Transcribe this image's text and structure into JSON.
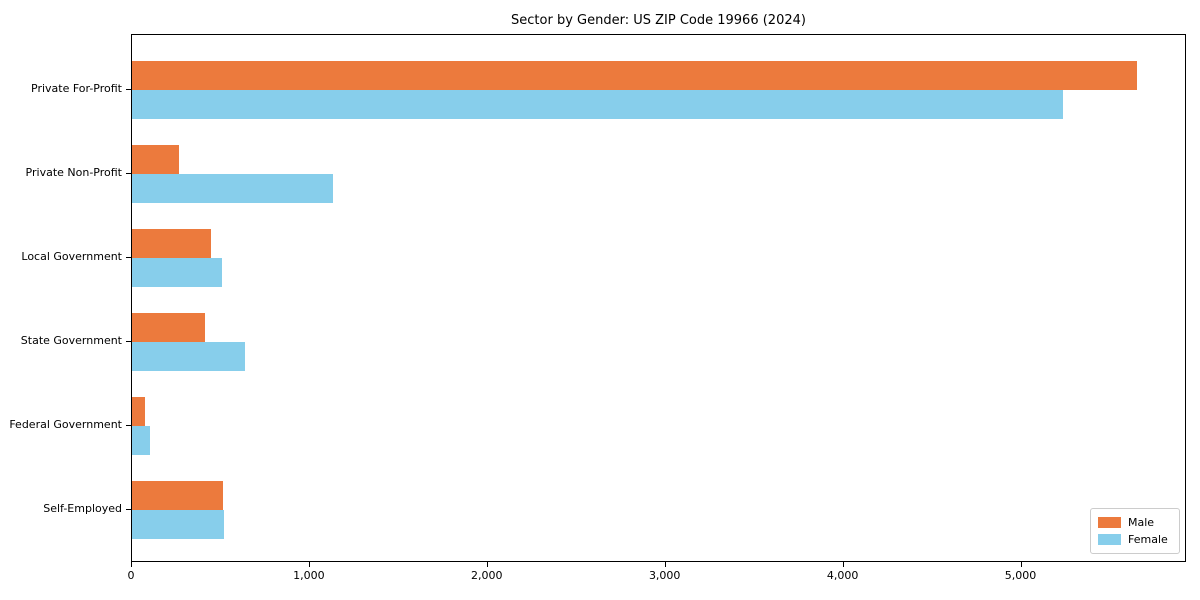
{
  "title": "Sector by Gender: US ZIP Code 19966 (2024)",
  "chart_data": {
    "type": "bar",
    "orientation": "horizontal",
    "title": "Sector by Gender: US ZIP Code 19966 (2024)",
    "xlabel": "",
    "ylabel": "",
    "categories": [
      "Private For-Profit",
      "Private Non-Profit",
      "Local Government",
      "State Government",
      "Federal Government",
      "Self-Employed"
    ],
    "series": [
      {
        "name": "Male",
        "color": "#ec7a3d",
        "values": [
          5648,
          266,
          444,
          412,
          73,
          512
        ]
      },
      {
        "name": "Female",
        "color": "#87ceeb",
        "values": [
          5231,
          1132,
          504,
          635,
          103,
          517
        ]
      }
    ],
    "xlim": [
      0,
      5930
    ],
    "x_ticks": [
      0,
      1000,
      2000,
      3000,
      4000,
      5000
    ],
    "x_tick_labels": [
      "0",
      "1,000",
      "2,000",
      "3,000",
      "4,000",
      "5,000"
    ],
    "grid": false,
    "legend_position": "lower right"
  }
}
